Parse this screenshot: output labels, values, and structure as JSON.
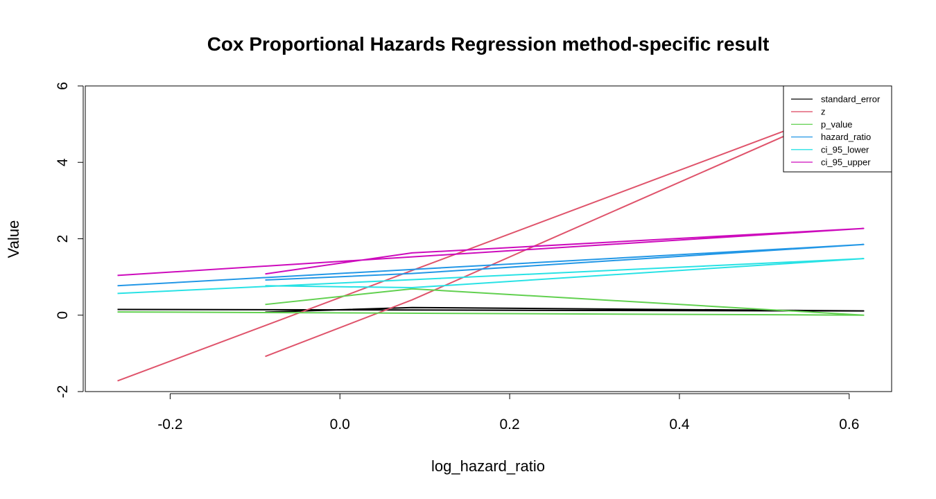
{
  "chart_data": {
    "type": "line",
    "title": "Cox Proportional Hazards Regression method-specific result",
    "xlabel": "log_hazard_ratio",
    "ylabel": "Value",
    "xlim": [
      -0.3,
      0.65
    ],
    "ylim": [
      -2,
      6
    ],
    "xticks": [
      -0.2,
      0.0,
      0.2,
      0.4,
      0.6
    ],
    "xtick_labels": [
      "-0.2",
      "0.0",
      "0.2",
      "0.4",
      "0.6"
    ],
    "yticks": [
      -2,
      0,
      2,
      4,
      6
    ],
    "ytick_labels": [
      "-2",
      "0",
      "2",
      "4",
      "6"
    ],
    "grid": false,
    "legend_position": "top-right",
    "x": [
      -0.262,
      -0.088,
      0.085,
      0.617
    ],
    "series": [
      {
        "name": "standard_error",
        "color": "#000000",
        "values": [
          0.15,
          0.08,
          0.2,
          0.11
        ]
      },
      {
        "name": "z",
        "color": "#DF536B",
        "values": [
          -1.72,
          -1.08,
          0.4,
          5.6
        ]
      },
      {
        "name": "p_value",
        "color": "#61D04F",
        "values": [
          0.085,
          0.28,
          0.69,
          0.0
        ]
      },
      {
        "name": "hazard_ratio",
        "color": "#2297E6",
        "values": [
          0.77,
          0.92,
          1.09,
          1.85
        ]
      },
      {
        "name": "ci_95_lower",
        "color": "#28E2E5",
        "values": [
          0.57,
          0.77,
          0.72,
          1.48
        ]
      },
      {
        "name": "ci_95_upper",
        "color": "#CD0BBC",
        "values": [
          1.04,
          1.08,
          1.63,
          2.27
        ]
      }
    ],
    "line_order": [
      0,
      3,
      2,
      1
    ]
  }
}
